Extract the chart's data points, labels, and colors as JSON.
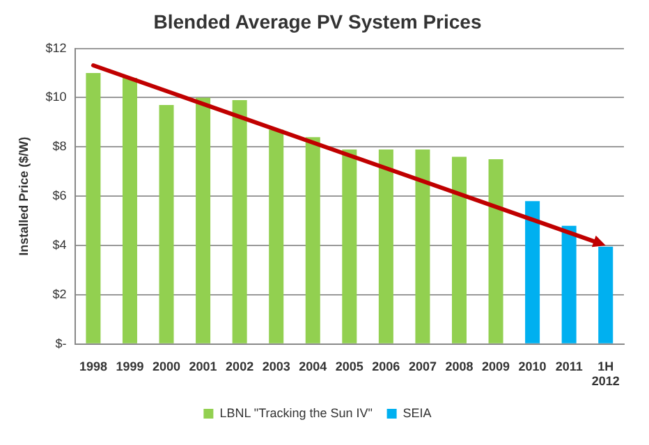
{
  "chart_data": {
    "type": "bar",
    "title": "Blended Average PV System Prices",
    "ylabel": "Installed Price ($/W)",
    "categories": [
      "1998",
      "1999",
      "2000",
      "2001",
      "2002",
      "2003",
      "2004",
      "2005",
      "2006",
      "2007",
      "2008",
      "2009",
      "2010",
      "2011",
      "1H 2012"
    ],
    "series": [
      {
        "name": "LBNL \"Tracking the Sun IV\"",
        "color": "#92d050",
        "values": [
          11.0,
          10.8,
          9.7,
          10.0,
          9.9,
          8.7,
          8.4,
          7.9,
          7.9,
          7.9,
          7.6,
          7.5,
          null,
          null,
          null
        ]
      },
      {
        "name": "SEIA",
        "color": "#00b0f0",
        "values": [
          null,
          null,
          null,
          null,
          null,
          null,
          null,
          null,
          null,
          null,
          null,
          null,
          5.8,
          4.8,
          3.95
        ]
      }
    ],
    "ylim": [
      0,
      12
    ],
    "yticks": [
      {
        "value": 0,
        "label": "$-"
      },
      {
        "value": 2,
        "label": "$2"
      },
      {
        "value": 4,
        "label": "$4"
      },
      {
        "value": 6,
        "label": "$6"
      },
      {
        "value": 8,
        "label": "$8"
      },
      {
        "value": 10,
        "label": "$10"
      },
      {
        "value": 12,
        "label": "$12"
      }
    ],
    "grid": "y",
    "legend": "bottom"
  }
}
